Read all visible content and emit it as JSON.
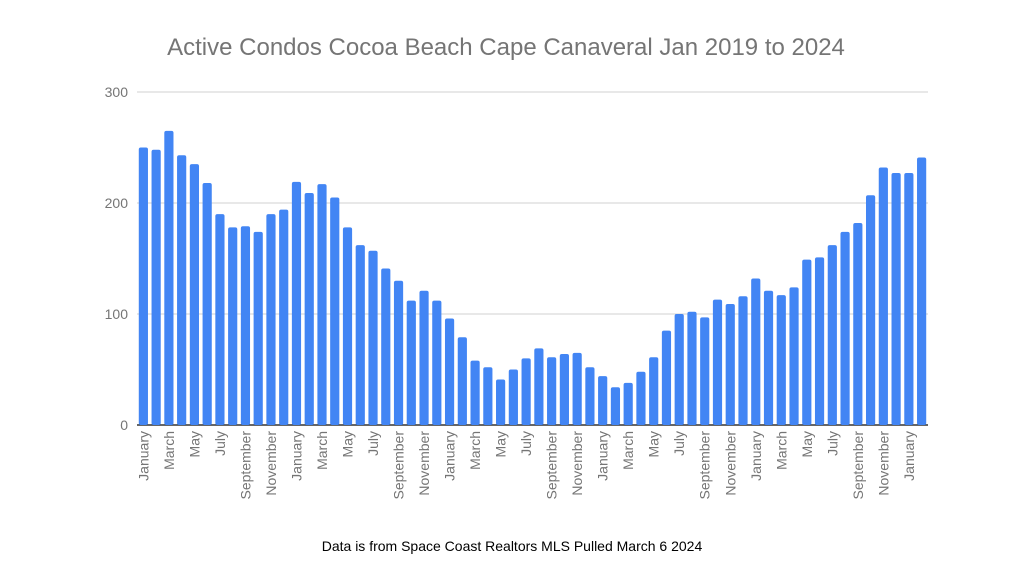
{
  "chart_data": {
    "type": "bar",
    "title": "Active Condos Cocoa Beach Cape Canaveral Jan 2019 to 2024",
    "xlabel": "",
    "ylabel": "",
    "ylim": [
      0,
      300
    ],
    "yticks": [
      0,
      100,
      200,
      300
    ],
    "grid": true,
    "legend": "none",
    "color": "#4285F4",
    "categories": [
      "January",
      "February",
      "March",
      "April",
      "May",
      "June",
      "July",
      "August",
      "September",
      "October",
      "November",
      "December",
      "January",
      "February",
      "March",
      "April",
      "May",
      "June",
      "July",
      "August",
      "September",
      "October",
      "November",
      "December",
      "January",
      "February",
      "March",
      "April",
      "May",
      "June",
      "July",
      "August",
      "September",
      "October",
      "November",
      "December",
      "January",
      "February",
      "March",
      "April",
      "May",
      "June",
      "July",
      "August",
      "September",
      "October",
      "November",
      "December",
      "January",
      "February",
      "March",
      "April",
      "May",
      "June",
      "July",
      "August",
      "September",
      "October",
      "November",
      "December",
      "January",
      "February"
    ],
    "values": [
      250,
      248,
      265,
      243,
      235,
      218,
      190,
      178,
      179,
      174,
      190,
      194,
      219,
      209,
      217,
      205,
      178,
      162,
      157,
      141,
      130,
      112,
      121,
      112,
      96,
      79,
      58,
      52,
      41,
      50,
      60,
      69,
      61,
      64,
      65,
      52,
      44,
      34,
      38,
      48,
      61,
      85,
      100,
      102,
      97,
      113,
      109,
      116,
      132,
      121,
      117,
      124,
      149,
      151,
      162,
      174,
      182,
      207,
      232,
      227,
      227,
      241
    ]
  },
  "footer": "Data is from Space Coast Realtors MLS Pulled March 6 2024"
}
